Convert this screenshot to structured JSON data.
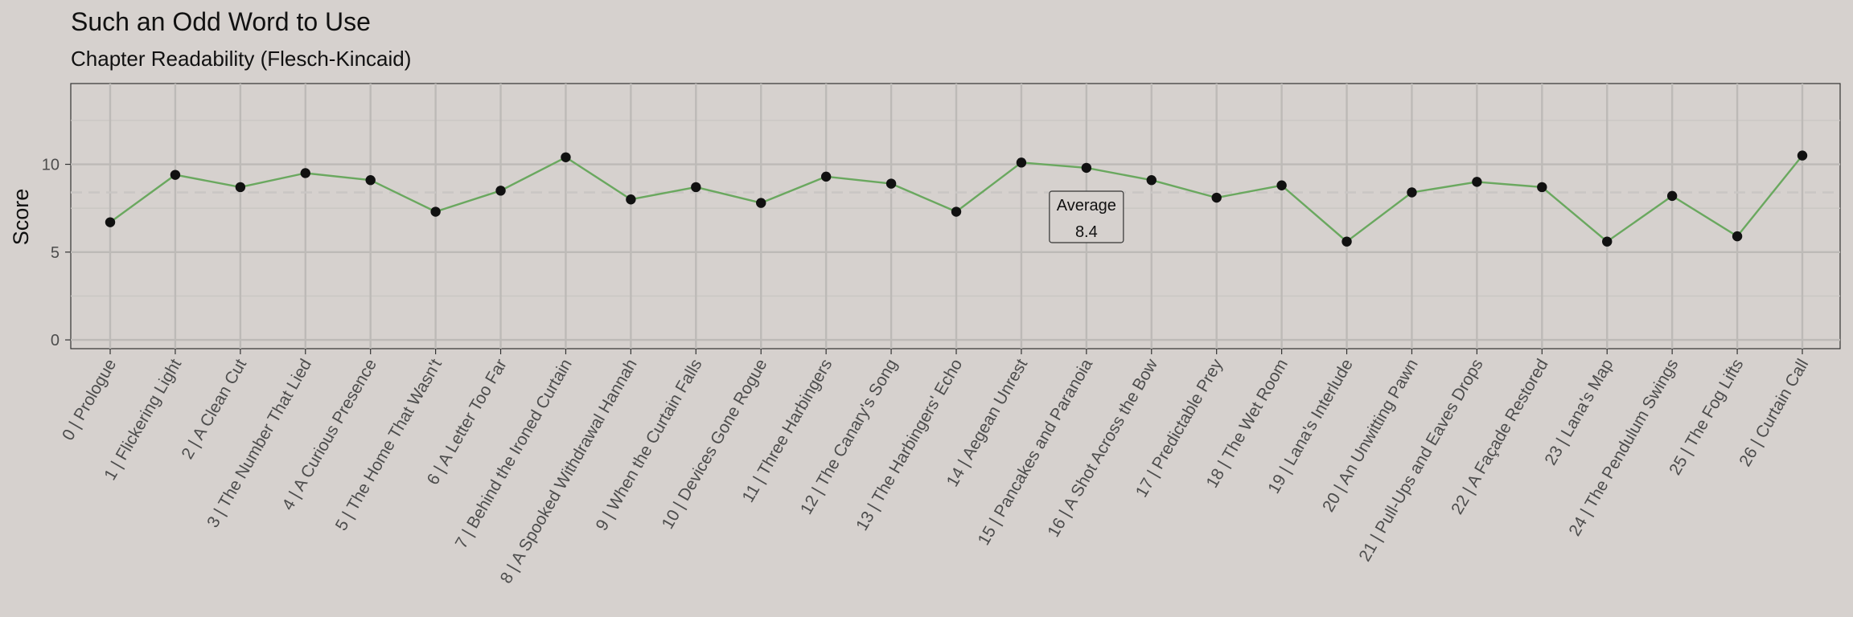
{
  "chart_data": {
    "type": "line",
    "title": "Such an Odd Word to Use",
    "subtitle": "Chapter Readability (Flesch-Kincaid)",
    "xlabel": "",
    "ylabel": "Score",
    "ylim": [
      -0.5,
      14.6
    ],
    "yticks": [
      0,
      5,
      10
    ],
    "grid": true,
    "line_color": "#6aa85f",
    "point_color": "#111111",
    "average_line_color": "#c9c6c4",
    "categories": [
      "0 | Prologue",
      "1 | Flickering Light",
      "2 | A Clean Cut",
      "3 | The Number That Lied",
      "4 | A Curious Presence",
      "5 | The Home That Wasn't",
      "6 | A Letter Too Far",
      "7 | Behind the Ironed Curtain",
      "8 | A Spooked Withdrawal Hannah",
      "9 | When the Curtain Falls",
      "10 | Devices Gone Rogue",
      "11 | Three Harbingers",
      "12 | The Canary's Song",
      "13 | The Harbingers' Echo",
      "14 | Aegean Unrest",
      "15 | Pancakes and Paranoia",
      "16 | A Shot Across the Bow",
      "17 | Predictable Prey",
      "18 | The Wet Room",
      "19 | Lana's Interlude",
      "20 | An Unwitting Pawn",
      "21 | Pull-Ups and Eaves Drops",
      "22 | A Façade Restored",
      "23 | Lana's Map",
      "24 | The Pendulum Swings",
      "25 | The Fog Lifts",
      "26 | Curtain Call"
    ],
    "series": [
      {
        "values": [
          6.7,
          9.4,
          8.7,
          9.5,
          9.1,
          7.3,
          8.5,
          10.4,
          8.0,
          8.7,
          7.8,
          9.3,
          8.9,
          7.3,
          10.1,
          9.8,
          9.1,
          8.1,
          8.8,
          5.6,
          8.4,
          9.0,
          8.7,
          5.6,
          8.2,
          5.9,
          10.5
        ]
      }
    ],
    "average": {
      "label": "Average",
      "value": 8.4,
      "value_text": "8.4",
      "annotation_x_index": 15
    }
  }
}
